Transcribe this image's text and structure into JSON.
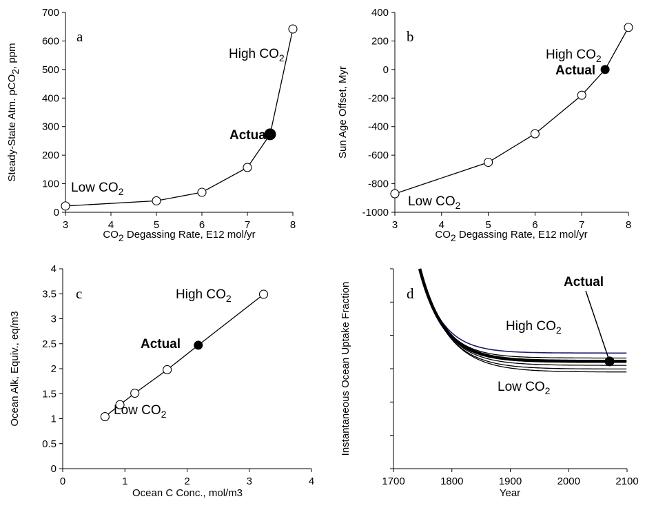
{
  "chart_data": [
    {
      "panel": "a",
      "type": "line",
      "xlabel": [
        "CO",
        "2",
        " Degassing Rate, E12 mol/yr"
      ],
      "ylabel": [
        "Steady-State Atm. pCO",
        "2",
        ", ppm"
      ],
      "xlim": [
        3,
        8
      ],
      "ylim": [
        0,
        700
      ],
      "xticks": [
        3,
        4,
        5,
        6,
        7,
        8
      ],
      "yticks": [
        0,
        100,
        200,
        300,
        400,
        500,
        600,
        700
      ],
      "x": [
        3,
        5,
        6,
        7,
        7.5,
        8
      ],
      "y": [
        22,
        40,
        70,
        157,
        273,
        642
      ],
      "actual_point": {
        "x": 7.5,
        "y": 273
      },
      "annotations": {
        "low": [
          "Low CO",
          "2"
        ],
        "high": [
          "High CO",
          "2"
        ],
        "actual": "Actual"
      }
    },
    {
      "panel": "b",
      "type": "line",
      "xlabel": [
        "CO",
        "2",
        " Degassing Rate, E12 mol/yr"
      ],
      "ylabel": [
        "Sun Age Offset, Myr"
      ],
      "xlim": [
        3,
        8
      ],
      "ylim": [
        -1000,
        400
      ],
      "xticks": [
        3,
        4,
        5,
        6,
        7,
        8
      ],
      "yticks": [
        -1000,
        -800,
        -600,
        -400,
        -200,
        0,
        200,
        400
      ],
      "x": [
        3,
        5,
        6,
        7,
        7.5,
        8
      ],
      "y": [
        -870,
        -650,
        -450,
        -180,
        0,
        295
      ],
      "actual_point": {
        "x": 7.5,
        "y": 0
      },
      "annotations": {
        "low": [
          "Low CO",
          "2"
        ],
        "high": [
          "High CO",
          "2"
        ],
        "actual": "Actual"
      }
    },
    {
      "panel": "c",
      "type": "line",
      "xlabel": [
        "Ocean C Conc., mol/m3"
      ],
      "ylabel": [
        "Ocean Alk, Equiv., eq/m3"
      ],
      "xlim": [
        0,
        4
      ],
      "ylim": [
        0,
        4
      ],
      "xticks": [
        0,
        1,
        2,
        3,
        4
      ],
      "yticks": [
        0,
        0.5,
        1,
        1.5,
        2,
        2.5,
        3,
        3.5,
        4
      ],
      "x": [
        0.68,
        0.92,
        1.16,
        1.68,
        2.18,
        3.23
      ],
      "y": [
        1.04,
        1.28,
        1.51,
        1.98,
        2.47,
        3.49
      ],
      "actual_point": {
        "x": 2.18,
        "y": 2.47
      },
      "annotations": {
        "low": [
          "Low CO",
          "2"
        ],
        "high": [
          "High CO",
          "2"
        ],
        "actual": "Actual"
      }
    },
    {
      "panel": "d",
      "type": "line",
      "xlabel": [
        "Year"
      ],
      "ylabel": [
        "Instantaneous Ocean Uptake Fraction"
      ],
      "xlim": [
        1700,
        2100
      ],
      "ylim": [
        0,
        6
      ],
      "xticks": [
        1700,
        1800,
        1900,
        2000,
        2100
      ],
      "yticks": [
        0,
        1,
        2,
        3,
        4,
        5,
        6
      ],
      "show_ytick_labels": false,
      "start_year": 1745,
      "start_value": 6,
      "series": [
        {
          "plateau": 3.47,
          "rate": 0.026,
          "color": "#1a1a6e",
          "width": 1.6
        },
        {
          "plateau": 3.32,
          "rate": 0.025,
          "color": "#000000",
          "width": 1.3
        },
        {
          "plateau": 3.22,
          "rate": 0.024,
          "color": "#000000",
          "width": 4.5
        },
        {
          "plateau": 3.1,
          "rate": 0.023,
          "color": "#000000",
          "width": 1.3
        },
        {
          "plateau": 2.99,
          "rate": 0.022,
          "color": "#000000",
          "width": 1.3
        },
        {
          "plateau": 2.9,
          "rate": 0.021,
          "color": "#000000",
          "width": 1.3
        }
      ],
      "actual_point": {
        "x": 2070,
        "y": 3.22
      },
      "annotations": {
        "low": [
          "Low CO",
          "2"
        ],
        "high": [
          "High CO",
          "2"
        ],
        "actual": "Actual"
      }
    }
  ]
}
